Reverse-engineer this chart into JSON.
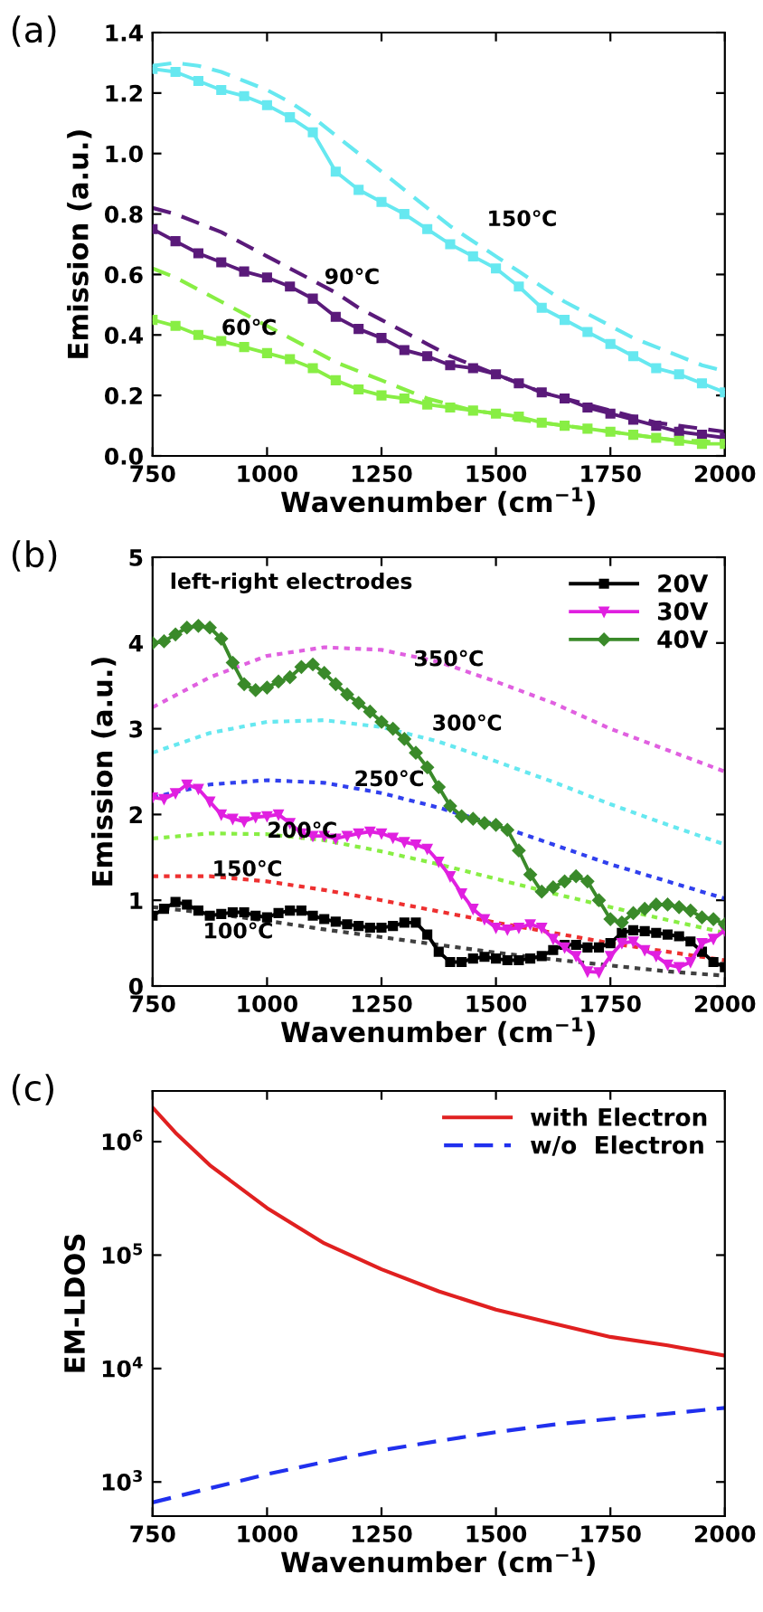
{
  "chart_data": [
    {
      "type": "line",
      "title": "(a)",
      "xlabel": "Wavenumber (cm$^{−1}$)",
      "ylabel": "Emission (a.u.)",
      "xlim": [
        750,
        2000
      ],
      "xticks": [
        750,
        1000,
        1250,
        1500,
        1750,
        2000
      ],
      "ylim": [
        0,
        1.4
      ],
      "yticks": [
        {
          "value": 0,
          "label": "0.0"
        },
        0.2,
        0.4,
        0.6,
        0.8,
        {
          "value": 1,
          "label": "1.0"
        },
        1.2,
        1.4
      ],
      "grid": false,
      "legend": false,
      "annotations": [
        "150℃",
        "90℃",
        "60℃"
      ],
      "series": [
        {
          "color": "#66e8f0",
          "marker": "square",
          "line_style": "solid",
          "x": [
            750,
            800,
            850,
            900,
            950,
            1000,
            1050,
            1100,
            1150,
            1200,
            1250,
            1300,
            1350,
            1400,
            1450,
            1500,
            1550,
            1600,
            1650,
            1700,
            1750,
            1800,
            1850,
            1900,
            1950,
            2000
          ],
          "values": [
            1.28,
            1.27,
            1.24,
            1.21,
            1.19,
            1.16,
            1.12,
            1.07,
            0.94,
            0.88,
            0.84,
            0.8,
            0.75,
            0.7,
            0.66,
            0.62,
            0.56,
            0.49,
            0.45,
            0.41,
            0.37,
            0.33,
            0.29,
            0.27,
            0.24,
            0.21
          ]
        },
        {
          "color": "#66e8f0",
          "marker": "none",
          "line_style": "dashed",
          "x": [
            750,
            800,
            850,
            900,
            950,
            1000,
            1050,
            1100,
            1150,
            1200,
            1250,
            1300,
            1350,
            1400,
            1450,
            1500,
            1550,
            1600,
            1650,
            1700,
            1750,
            1800,
            1850,
            1900,
            1950,
            2000
          ],
          "values": [
            1.29,
            1.3,
            1.29,
            1.27,
            1.24,
            1.21,
            1.17,
            1.12,
            1.06,
            1.0,
            0.94,
            0.88,
            0.82,
            0.76,
            0.71,
            0.66,
            0.61,
            0.56,
            0.51,
            0.47,
            0.43,
            0.39,
            0.36,
            0.33,
            0.3,
            0.28
          ]
        },
        {
          "color": "#5a1a7a",
          "marker": "square",
          "line_style": "solid",
          "x": [
            750,
            800,
            850,
            900,
            950,
            1000,
            1050,
            1100,
            1150,
            1200,
            1250,
            1300,
            1350,
            1400,
            1450,
            1500,
            1550,
            1600,
            1650,
            1700,
            1750,
            1800,
            1850,
            1900,
            1950,
            2000
          ],
          "values": [
            0.75,
            0.71,
            0.67,
            0.64,
            0.61,
            0.59,
            0.56,
            0.52,
            0.46,
            0.42,
            0.39,
            0.35,
            0.33,
            0.3,
            0.29,
            0.27,
            0.24,
            0.21,
            0.19,
            0.16,
            0.14,
            0.12,
            0.1,
            0.08,
            0.07,
            0.06
          ]
        },
        {
          "color": "#5a1a7a",
          "marker": "none",
          "line_style": "dashed",
          "x": [
            750,
            800,
            850,
            900,
            950,
            1000,
            1050,
            1100,
            1150,
            1200,
            1250,
            1300,
            1350,
            1400,
            1450,
            1500,
            1550,
            1600,
            1650,
            1700,
            1750,
            1800,
            1850,
            1900,
            1950,
            2000
          ],
          "values": [
            0.82,
            0.8,
            0.77,
            0.74,
            0.7,
            0.66,
            0.62,
            0.58,
            0.54,
            0.49,
            0.45,
            0.41,
            0.37,
            0.33,
            0.3,
            0.27,
            0.24,
            0.21,
            0.19,
            0.17,
            0.15,
            0.13,
            0.11,
            0.1,
            0.09,
            0.08
          ]
        },
        {
          "color": "#88ee44",
          "marker": "square",
          "line_style": "solid",
          "x": [
            750,
            800,
            850,
            900,
            950,
            1000,
            1050,
            1100,
            1150,
            1200,
            1250,
            1300,
            1350,
            1400,
            1450,
            1500,
            1550,
            1600,
            1650,
            1700,
            1750,
            1800,
            1850,
            1900,
            1950,
            2000
          ],
          "values": [
            0.45,
            0.43,
            0.4,
            0.38,
            0.36,
            0.34,
            0.32,
            0.29,
            0.25,
            0.22,
            0.2,
            0.19,
            0.17,
            0.16,
            0.15,
            0.14,
            0.13,
            0.11,
            0.1,
            0.09,
            0.08,
            0.07,
            0.06,
            0.05,
            0.04,
            0.04
          ]
        },
        {
          "color": "#88ee44",
          "marker": "none",
          "line_style": "dashed",
          "x": [
            750,
            800,
            850,
            900,
            950,
            1000,
            1050,
            1100,
            1150,
            1200,
            1250,
            1300,
            1350,
            1400,
            1450,
            1500,
            1550,
            1600,
            1650,
            1700,
            1750,
            1800,
            1850,
            1900,
            1950,
            2000
          ],
          "values": [
            0.62,
            0.59,
            0.55,
            0.51,
            0.47,
            0.43,
            0.39,
            0.35,
            0.31,
            0.28,
            0.25,
            0.22,
            0.19,
            0.17,
            0.15,
            0.14,
            0.12,
            0.11,
            0.1,
            0.09,
            0.08,
            0.07,
            0.06,
            0.05,
            0.05,
            0.04
          ]
        }
      ]
    },
    {
      "type": "line",
      "title": "(b)",
      "xlabel": "Wavenumber (cm$^{−1}$)",
      "ylabel": "Emission (a.u.)",
      "xlim": [
        750,
        2000
      ],
      "xticks": [
        750,
        1000,
        1250,
        1500,
        1750,
        2000
      ],
      "ylim": [
        0,
        5
      ],
      "yticks": [
        0,
        1,
        2,
        3,
        4,
        5
      ],
      "grid": false,
      "legend": "top right",
      "annotations": [
        "left-right electrodes",
        "350℃",
        "300℃",
        "250℃",
        "200℃",
        "150℃",
        "100℃"
      ],
      "series": [
        {
          "color": "#e060e0",
          "marker": "none",
          "line_style": "dotted",
          "x": [
            750,
            875,
            1000,
            1125,
            1250,
            1375,
            1500,
            1625,
            1750,
            1875,
            2000
          ],
          "values": [
            3.25,
            3.6,
            3.85,
            3.95,
            3.92,
            3.78,
            3.55,
            3.3,
            3.0,
            2.75,
            2.5
          ]
        },
        {
          "color": "#66e8f0",
          "marker": "none",
          "line_style": "dotted",
          "x": [
            750,
            875,
            1000,
            1125,
            1250,
            1375,
            1500,
            1625,
            1750,
            1875,
            2000
          ],
          "values": [
            2.72,
            2.95,
            3.08,
            3.1,
            3.02,
            2.85,
            2.62,
            2.38,
            2.12,
            1.88,
            1.65
          ]
        },
        {
          "color": "#3040ee",
          "marker": "none",
          "line_style": "dotted",
          "x": [
            750,
            875,
            1000,
            1125,
            1250,
            1375,
            1500,
            1625,
            1750,
            1875,
            2000
          ],
          "values": [
            2.2,
            2.35,
            2.4,
            2.37,
            2.25,
            2.08,
            1.88,
            1.65,
            1.42,
            1.22,
            1.02
          ]
        },
        {
          "color": "#88ee44",
          "marker": "none",
          "line_style": "dotted",
          "x": [
            750,
            875,
            1000,
            1125,
            1250,
            1375,
            1500,
            1625,
            1750,
            1875,
            2000
          ],
          "values": [
            1.72,
            1.78,
            1.77,
            1.7,
            1.57,
            1.42,
            1.25,
            1.08,
            0.92,
            0.77,
            0.62
          ]
        },
        {
          "color": "#ee3030",
          "marker": "none",
          "line_style": "dotted",
          "x": [
            750,
            875,
            1000,
            1125,
            1250,
            1375,
            1500,
            1625,
            1750,
            1875,
            2000
          ],
          "values": [
            1.28,
            1.28,
            1.22,
            1.12,
            1.0,
            0.87,
            0.74,
            0.62,
            0.5,
            0.4,
            0.3
          ]
        },
        {
          "color": "#404040",
          "marker": "none",
          "line_style": "dotted",
          "x": [
            750,
            875,
            1000,
            1125,
            1250,
            1375,
            1500,
            1625,
            1750,
            1875,
            2000
          ],
          "values": [
            0.92,
            0.85,
            0.76,
            0.66,
            0.57,
            0.48,
            0.39,
            0.31,
            0.24,
            0.17,
            0.12
          ]
        },
        {
          "name": "20V",
          "color": "#000000",
          "marker": "square",
          "line_style": "solid",
          "x": [
            750,
            775,
            800,
            825,
            850,
            875,
            900,
            925,
            950,
            975,
            1000,
            1025,
            1050,
            1075,
            1100,
            1125,
            1150,
            1175,
            1200,
            1225,
            1250,
            1275,
            1300,
            1325,
            1350,
            1375,
            1400,
            1425,
            1450,
            1475,
            1500,
            1525,
            1550,
            1575,
            1600,
            1625,
            1650,
            1675,
            1700,
            1725,
            1750,
            1775,
            1800,
            1825,
            1850,
            1875,
            1900,
            1925,
            1950,
            1975,
            2000
          ],
          "values": [
            0.82,
            0.9,
            0.98,
            0.95,
            0.88,
            0.82,
            0.84,
            0.86,
            0.86,
            0.82,
            0.8,
            0.85,
            0.88,
            0.88,
            0.82,
            0.78,
            0.75,
            0.72,
            0.7,
            0.68,
            0.68,
            0.7,
            0.74,
            0.74,
            0.6,
            0.4,
            0.28,
            0.28,
            0.32,
            0.34,
            0.32,
            0.3,
            0.3,
            0.32,
            0.35,
            0.42,
            0.48,
            0.48,
            0.45,
            0.45,
            0.5,
            0.62,
            0.65,
            0.64,
            0.62,
            0.6,
            0.58,
            0.52,
            0.4,
            0.28,
            0.22
          ]
        },
        {
          "name": "30V",
          "color": "#e020e0",
          "marker": "triangle",
          "line_style": "solid",
          "x": [
            750,
            775,
            800,
            825,
            850,
            875,
            900,
            925,
            950,
            975,
            1000,
            1025,
            1050,
            1075,
            1100,
            1125,
            1150,
            1175,
            1200,
            1225,
            1250,
            1275,
            1300,
            1325,
            1350,
            1375,
            1400,
            1425,
            1450,
            1475,
            1500,
            1525,
            1550,
            1575,
            1600,
            1625,
            1650,
            1675,
            1700,
            1725,
            1750,
            1775,
            1800,
            1825,
            1850,
            1875,
            1900,
            1925,
            1950,
            1975,
            2000
          ],
          "values": [
            2.2,
            2.18,
            2.25,
            2.35,
            2.3,
            2.15,
            2.0,
            1.95,
            1.92,
            1.97,
            1.98,
            2.0,
            1.9,
            1.78,
            1.75,
            1.75,
            1.72,
            1.75,
            1.78,
            1.8,
            1.78,
            1.73,
            1.68,
            1.65,
            1.6,
            1.45,
            1.28,
            1.08,
            0.9,
            0.78,
            0.68,
            0.66,
            0.68,
            0.72,
            0.68,
            0.55,
            0.45,
            0.35,
            0.17,
            0.16,
            0.35,
            0.5,
            0.52,
            0.42,
            0.35,
            0.25,
            0.22,
            0.28,
            0.5,
            0.55,
            0.65
          ]
        },
        {
          "name": "40V",
          "color": "#3a8a2a",
          "marker": "diamond",
          "line_style": "solid",
          "x": [
            750,
            775,
            800,
            825,
            850,
            875,
            900,
            925,
            950,
            975,
            1000,
            1025,
            1050,
            1075,
            1100,
            1125,
            1150,
            1175,
            1200,
            1225,
            1250,
            1275,
            1300,
            1325,
            1350,
            1375,
            1400,
            1425,
            1450,
            1475,
            1500,
            1525,
            1550,
            1575,
            1600,
            1625,
            1650,
            1675,
            1700,
            1725,
            1750,
            1775,
            1800,
            1825,
            1850,
            1875,
            1900,
            1925,
            1950,
            1975,
            2000
          ],
          "values": [
            4.0,
            4.02,
            4.1,
            4.18,
            4.2,
            4.18,
            4.05,
            3.77,
            3.52,
            3.45,
            3.48,
            3.55,
            3.6,
            3.72,
            3.75,
            3.65,
            3.52,
            3.4,
            3.3,
            3.2,
            3.08,
            3.0,
            2.88,
            2.72,
            2.55,
            2.32,
            2.1,
            1.98,
            1.95,
            1.9,
            1.88,
            1.82,
            1.58,
            1.3,
            1.1,
            1.15,
            1.22,
            1.28,
            1.22,
            1.0,
            0.78,
            0.74,
            0.85,
            0.9,
            0.95,
            0.95,
            0.92,
            0.88,
            0.8,
            0.78,
            0.72
          ]
        }
      ]
    },
    {
      "type": "line",
      "title": "(c)",
      "xlabel": "Wavenumber (cm$^{−1}$)",
      "ylabel": "EM-LDOS",
      "log": "y",
      "xlim": [
        750,
        2000
      ],
      "xticks": [
        750,
        1000,
        1250,
        1500,
        1750,
        2000
      ],
      "ylim": [
        500,
        2800000
      ],
      "yticks": [
        {
          "value": 1000,
          "label": "10$^{3}$"
        },
        {
          "value": 10000,
          "label": "10$^{4}$"
        },
        {
          "value": 100000,
          "label": "10$^{5}$"
        },
        {
          "value": 1000000,
          "label": "10$^{6}$"
        }
      ],
      "grid": false,
      "legend": "top right",
      "series": [
        {
          "name": "with Electron",
          "color": "#e02020",
          "marker": "none",
          "line_style": "solid",
          "x": [
            750,
            800,
            875,
            1000,
            1125,
            1250,
            1375,
            1500,
            1625,
            1750,
            1875,
            2000
          ],
          "values": [
            2000000,
            1200000,
            620000,
            260000,
            127000,
            75000,
            48000,
            33000,
            25000,
            19000,
            16000,
            13000
          ]
        },
        {
          "name": "w/o  Electron",
          "color": "#2030ee",
          "marker": "none",
          "line_style": "dashed",
          "x": [
            750,
            875,
            1000,
            1125,
            1250,
            1375,
            1500,
            1625,
            1750,
            1875,
            2000
          ],
          "values": [
            660,
            880,
            1170,
            1500,
            1900,
            2300,
            2750,
            3200,
            3600,
            4000,
            4500
          ]
        }
      ]
    }
  ]
}
